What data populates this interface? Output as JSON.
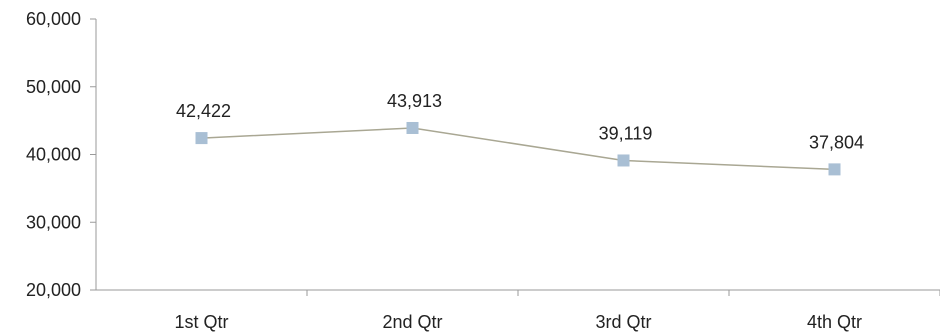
{
  "chart_data": {
    "type": "line",
    "categories": [
      "1st Qtr",
      "2nd Qtr",
      "3rd Qtr",
      "4th Qtr"
    ],
    "series": [
      {
        "values": [
          42422,
          43913,
          39119,
          37804
        ],
        "data_labels": [
          "42,422",
          "43,913",
          "39,119",
          "37,804"
        ],
        "line_color": "#a9a793",
        "marker_color": "#a9bfd4",
        "marker": "square"
      }
    ],
    "yticks": [
      "60,000",
      "50,000",
      "40,000",
      "30,000",
      "20,000"
    ],
    "ytick_values": [
      60000,
      50000,
      40000,
      30000,
      20000
    ],
    "ylim": [
      20000,
      60000
    ],
    "grid": false,
    "legend": "none",
    "axis_color": "#9a9a9a"
  }
}
